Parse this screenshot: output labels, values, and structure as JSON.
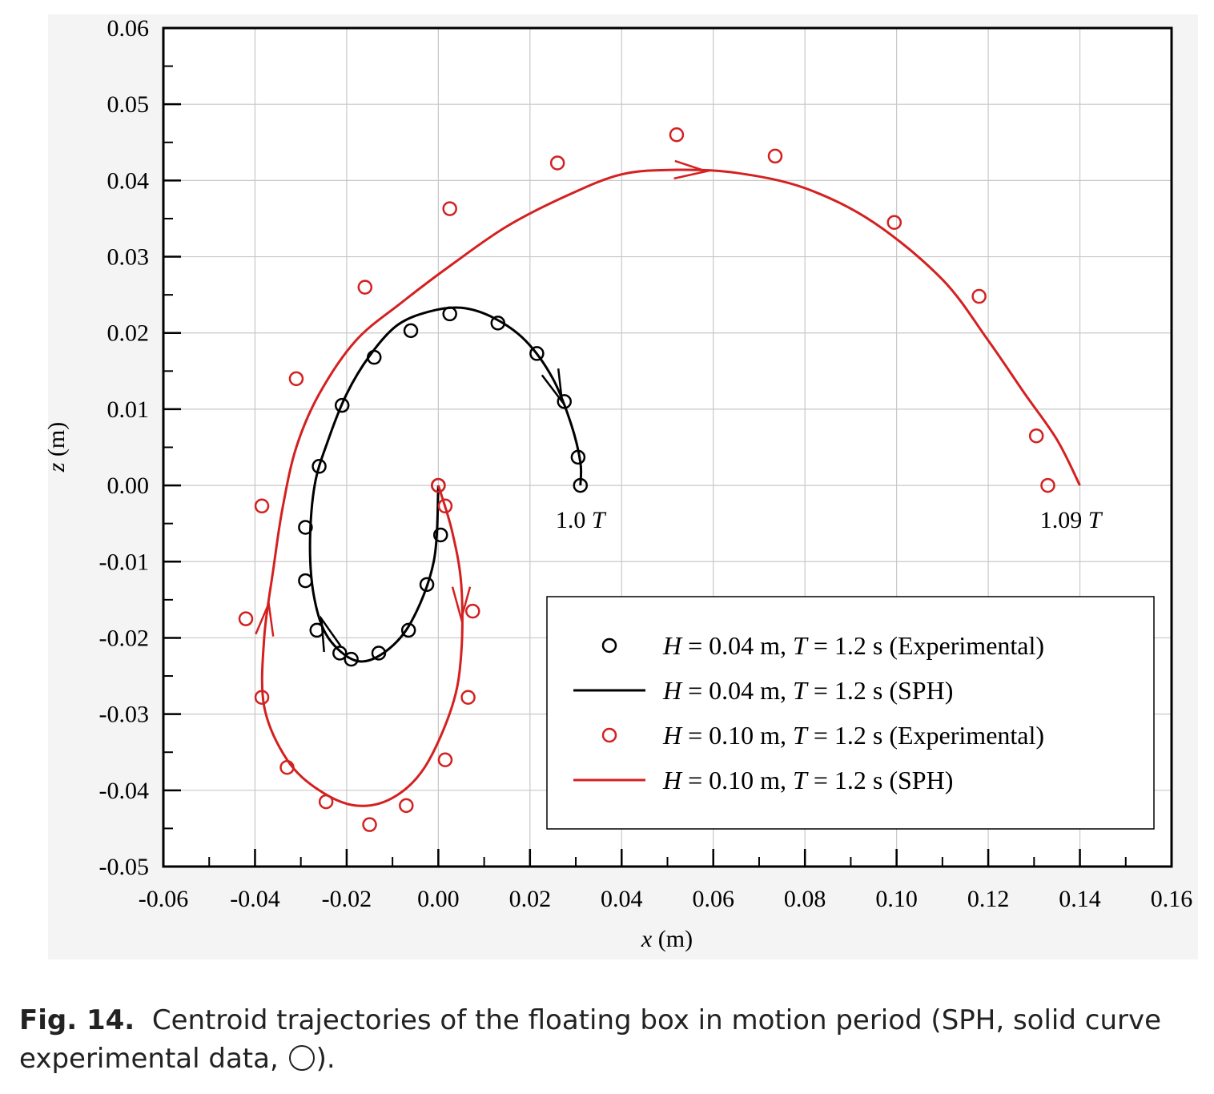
{
  "chart_data": {
    "type": "scatter",
    "xlabel_var": "x",
    "xlabel_unit": "(m)",
    "ylabel_var": "z",
    "ylabel_unit": "(m)",
    "xlim": [
      -0.06,
      0.16
    ],
    "ylim": [
      -0.05,
      0.06
    ],
    "xticks": [
      "-0.06",
      "-0.04",
      "-0.02",
      "0.00",
      "0.02",
      "0.04",
      "0.06",
      "0.08",
      "0.10",
      "0.12",
      "0.14",
      "0.16"
    ],
    "yticks": [
      "-0.05",
      "-0.04",
      "-0.03",
      "-0.02",
      "-0.01",
      "0.00",
      "0.01",
      "0.02",
      "0.03",
      "0.04",
      "0.05",
      "0.06"
    ],
    "grid": true,
    "legend_position": "bottom-right",
    "annotations": [
      {
        "text": "1.0",
        "italic": "T",
        "x": 0.031,
        "y": -0.0045
      },
      {
        "text": "1.09",
        "italic": "T",
        "x": 0.138,
        "y": -0.0045
      }
    ],
    "series": [
      {
        "name": "H = 0.04 m, T = 1.2 s (Experimental)",
        "legend_parts": [
          "H",
          " = 0.04 m, ",
          "T",
          " = 1.2 s (Experimental)"
        ],
        "kind": "markers",
        "color": "#000000",
        "points": [
          [
            0.0,
            0.0
          ],
          [
            0.0005,
            -0.0065
          ],
          [
            -0.0025,
            -0.013
          ],
          [
            -0.0065,
            -0.019
          ],
          [
            -0.013,
            -0.022
          ],
          [
            -0.019,
            -0.0228
          ],
          [
            -0.0215,
            -0.022
          ],
          [
            -0.0265,
            -0.019
          ],
          [
            -0.029,
            -0.0125
          ],
          [
            -0.029,
            -0.0055
          ],
          [
            -0.026,
            0.0025
          ],
          [
            -0.021,
            0.0105
          ],
          [
            -0.014,
            0.0168
          ],
          [
            -0.006,
            0.0203
          ],
          [
            0.0025,
            0.0225
          ],
          [
            0.013,
            0.0213
          ],
          [
            0.0215,
            0.0173
          ],
          [
            0.0275,
            0.011
          ],
          [
            0.0305,
            0.0037
          ],
          [
            0.031,
            0.0
          ]
        ]
      },
      {
        "name": "H = 0.04 m, T = 1.2 s (SPH)",
        "legend_parts": [
          "H",
          " = 0.04 m, ",
          "T",
          " = 1.2 s (SPH)"
        ],
        "kind": "line",
        "color": "#000000",
        "points": [
          [
            0.0,
            0.0
          ],
          [
            -0.001,
            -0.01
          ],
          [
            -0.006,
            -0.018
          ],
          [
            -0.012,
            -0.022
          ],
          [
            -0.018,
            -0.023
          ],
          [
            -0.024,
            -0.02
          ],
          [
            -0.027,
            -0.015
          ],
          [
            -0.028,
            -0.008
          ],
          [
            -0.027,
            0.0
          ],
          [
            -0.024,
            0.006
          ],
          [
            -0.02,
            0.012
          ],
          [
            -0.015,
            0.017
          ],
          [
            -0.009,
            0.021
          ],
          [
            -0.002,
            0.0228
          ],
          [
            0.005,
            0.0233
          ],
          [
            0.012,
            0.022
          ],
          [
            0.019,
            0.019
          ],
          [
            0.025,
            0.014
          ],
          [
            0.029,
            0.008
          ],
          [
            0.031,
            0.003
          ],
          [
            0.031,
            0.0
          ]
        ]
      },
      {
        "name": "H = 0.10 m, T = 1.2 s (Experimental)",
        "legend_parts": [
          "H",
          " = 0.10 m, ",
          "T",
          " = 1.2 s (Experimental)"
        ],
        "kind": "markers",
        "color": "#d42020",
        "points": [
          [
            0.0,
            0.0
          ],
          [
            0.0015,
            -0.0027
          ],
          [
            0.0075,
            -0.0165
          ],
          [
            0.0065,
            -0.0278
          ],
          [
            0.0015,
            -0.036
          ],
          [
            -0.007,
            -0.042
          ],
          [
            -0.015,
            -0.0445
          ],
          [
            -0.0245,
            -0.0415
          ],
          [
            -0.033,
            -0.037
          ],
          [
            -0.0385,
            -0.0278
          ],
          [
            -0.042,
            -0.0175
          ],
          [
            -0.0385,
            -0.0027
          ],
          [
            -0.031,
            0.014
          ],
          [
            -0.016,
            0.026
          ],
          [
            0.0025,
            0.0363
          ],
          [
            0.026,
            0.0423
          ],
          [
            0.052,
            0.046
          ],
          [
            0.0735,
            0.0432
          ],
          [
            0.0995,
            0.0345
          ],
          [
            0.118,
            0.0248
          ],
          [
            0.1305,
            0.0065
          ],
          [
            0.133,
            0.0
          ]
        ]
      },
      {
        "name": "H = 0.10 m, T = 1.2 s (SPH)",
        "legend_parts": [
          "H",
          " = 0.10 m, ",
          "T",
          " = 1.2 s (SPH)"
        ],
        "kind": "line",
        "color": "#d42020",
        "points": [
          [
            0.0,
            0.0
          ],
          [
            0.003,
            -0.006
          ],
          [
            0.005,
            -0.013
          ],
          [
            0.005,
            -0.022
          ],
          [
            0.003,
            -0.029
          ],
          [
            -0.003,
            -0.037
          ],
          [
            -0.01,
            -0.041
          ],
          [
            -0.018,
            -0.042
          ],
          [
            -0.026,
            -0.04
          ],
          [
            -0.033,
            -0.036
          ],
          [
            -0.038,
            -0.029
          ],
          [
            -0.038,
            -0.02
          ],
          [
            -0.036,
            -0.011
          ],
          [
            -0.034,
            -0.003
          ],
          [
            -0.031,
            0.005
          ],
          [
            -0.026,
            0.012
          ],
          [
            -0.018,
            0.019
          ],
          [
            -0.008,
            0.024
          ],
          [
            0.003,
            0.029
          ],
          [
            0.015,
            0.034
          ],
          [
            0.028,
            0.038
          ],
          [
            0.04,
            0.0408
          ],
          [
            0.052,
            0.0414
          ],
          [
            0.065,
            0.041
          ],
          [
            0.08,
            0.039
          ],
          [
            0.095,
            0.0345
          ],
          [
            0.11,
            0.027
          ],
          [
            0.12,
            0.019
          ],
          [
            0.128,
            0.012
          ],
          [
            0.135,
            0.006
          ],
          [
            0.14,
            0.0
          ]
        ]
      }
    ]
  },
  "caption": {
    "label": "Fig. 14.",
    "text": "Centroid trajectories of the floating box in motion period (SPH, solid curve",
    "text2": "experimental data,",
    "end": ")."
  }
}
